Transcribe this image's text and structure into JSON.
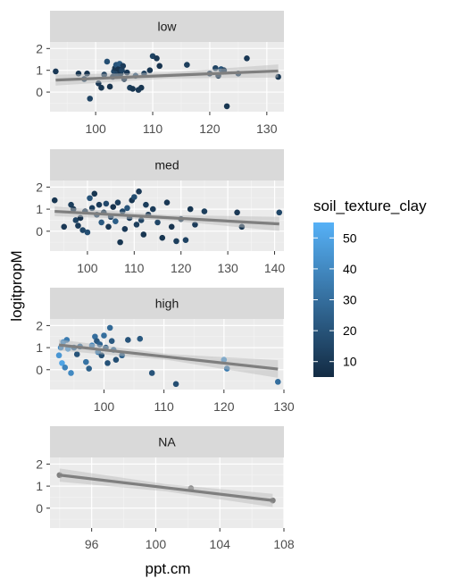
{
  "chart_data": {
    "type": "scatter",
    "xlabel": "ppt.cm",
    "ylabel": "logitpropM",
    "color_scale": {
      "name": "soil_texture_clay",
      "low_color": "#132b43",
      "high_color": "#56b1f7",
      "range": [
        5,
        55
      ],
      "breaks": [
        10,
        20,
        30,
        40,
        50
      ]
    },
    "smooth_color": "#7f7f7f",
    "ribbon_color": "#bebebe",
    "na_point_color": "#808080",
    "panels": [
      {
        "label": "low",
        "xlim": [
          92,
          133
        ],
        "ylim": [
          -0.9,
          2.3
        ],
        "xbreaks": [
          100,
          110,
          120,
          130
        ],
        "ybreaks": [
          0,
          1,
          2
        ],
        "smooth": {
          "x": [
            93,
            132
          ],
          "y": [
            0.55,
            0.97
          ],
          "se": [
            0.25,
            0.3
          ]
        },
        "points": [
          {
            "x": 93,
            "y": 0.95,
            "c": 10
          },
          {
            "x": 97,
            "y": 0.85,
            "c": 9
          },
          {
            "x": 98,
            "y": 0.6,
            "c": 12
          },
          {
            "x": 98.5,
            "y": 0.85,
            "c": 8
          },
          {
            "x": 99,
            "y": -0.3,
            "c": 14
          },
          {
            "x": 100.5,
            "y": 0.4,
            "c": 10
          },
          {
            "x": 101,
            "y": 0.2,
            "c": 9
          },
          {
            "x": 101.5,
            "y": 0.8,
            "c": 12
          },
          {
            "x": 102,
            "y": 1.4,
            "c": 18
          },
          {
            "x": 102.5,
            "y": 0.25,
            "c": 8
          },
          {
            "x": 103,
            "y": 0.7,
            "c": 10
          },
          {
            "x": 103.2,
            "y": 0.95,
            "c": 15
          },
          {
            "x": 103.4,
            "y": 1.1,
            "c": 9
          },
          {
            "x": 103.6,
            "y": 1.25,
            "c": 20
          },
          {
            "x": 103.8,
            "y": 0.8,
            "c": 12
          },
          {
            "x": 104,
            "y": 1.05,
            "c": 8
          },
          {
            "x": 104.2,
            "y": 1.3,
            "c": 22
          },
          {
            "x": 104.4,
            "y": 0.85,
            "c": 9
          },
          {
            "x": 104.6,
            "y": 1.0,
            "c": 14
          },
          {
            "x": 104.8,
            "y": 1.2,
            "c": 11
          },
          {
            "x": 105,
            "y": 0.6,
            "c": 8
          },
          {
            "x": 105.5,
            "y": 0.9,
            "c": 10
          },
          {
            "x": 106,
            "y": 0.2,
            "c": 12
          },
          {
            "x": 106.5,
            "y": 0.15,
            "c": 9
          },
          {
            "x": 107,
            "y": 0.75,
            "c": 18
          },
          {
            "x": 107.5,
            "y": 0.1,
            "c": 10
          },
          {
            "x": 108,
            "y": 0.2,
            "c": 9
          },
          {
            "x": 108.5,
            "y": 0.85,
            "c": 12
          },
          {
            "x": 109.5,
            "y": 1.0,
            "c": 9
          },
          {
            "x": 110,
            "y": 1.65,
            "c": 14
          },
          {
            "x": 110.7,
            "y": 1.55,
            "c": 10
          },
          {
            "x": 111.2,
            "y": 1.2,
            "c": 8
          },
          {
            "x": 116,
            "y": 1.25,
            "c": 12
          },
          {
            "x": 120,
            "y": 0.85,
            "c": 10
          },
          {
            "x": 121,
            "y": 1.1,
            "c": 14
          },
          {
            "x": 121.5,
            "y": 0.75,
            "c": 9
          },
          {
            "x": 122,
            "y": 1.05,
            "c": 20
          },
          {
            "x": 122.5,
            "y": 1.0,
            "c": 11
          },
          {
            "x": 123,
            "y": -0.65,
            "c": 9
          },
          {
            "x": 125,
            "y": 0.85,
            "c": 12
          },
          {
            "x": 126.5,
            "y": 1.55,
            "c": 10
          },
          {
            "x": 132,
            "y": 0.7,
            "c": 9
          }
        ]
      },
      {
        "label": "med",
        "xlim": [
          92,
          142
        ],
        "ylim": [
          -0.9,
          2.3
        ],
        "xbreaks": [
          100,
          110,
          120,
          130,
          140
        ],
        "ybreaks": [
          0,
          1,
          2
        ],
        "smooth": {
          "x": [
            93,
            141
          ],
          "y": [
            0.9,
            0.33
          ],
          "se": [
            0.22,
            0.32
          ]
        },
        "points": [
          {
            "x": 93,
            "y": 1.4,
            "c": 9
          },
          {
            "x": 95,
            "y": 0.2,
            "c": 10
          },
          {
            "x": 96.5,
            "y": 1.2,
            "c": 12
          },
          {
            "x": 97,
            "y": 1.0,
            "c": 9
          },
          {
            "x": 97.5,
            "y": 0.5,
            "c": 14
          },
          {
            "x": 98,
            "y": 0.25,
            "c": 11
          },
          {
            "x": 98.5,
            "y": 0.6,
            "c": 8
          },
          {
            "x": 99,
            "y": 0.05,
            "c": 15
          },
          {
            "x": 99.5,
            "y": 0.9,
            "c": 10
          },
          {
            "x": 100,
            "y": -0.05,
            "c": 18
          },
          {
            "x": 100.5,
            "y": 1.5,
            "c": 20
          },
          {
            "x": 101,
            "y": 1.05,
            "c": 12
          },
          {
            "x": 101.5,
            "y": 1.7,
            "c": 9
          },
          {
            "x": 102,
            "y": 0.75,
            "c": 14
          },
          {
            "x": 102.5,
            "y": 1.2,
            "c": 11
          },
          {
            "x": 103,
            "y": 0.4,
            "c": 22
          },
          {
            "x": 103.5,
            "y": 0.85,
            "c": 9
          },
          {
            "x": 104,
            "y": 1.25,
            "c": 16
          },
          {
            "x": 104.5,
            "y": 0.2,
            "c": 10
          },
          {
            "x": 105,
            "y": 0.65,
            "c": 13
          },
          {
            "x": 105.5,
            "y": 1.1,
            "c": 8
          },
          {
            "x": 106,
            "y": 0.45,
            "c": 24
          },
          {
            "x": 106.5,
            "y": 1.3,
            "c": 12
          },
          {
            "x": 107,
            "y": -0.5,
            "c": 9
          },
          {
            "x": 107.5,
            "y": 0.9,
            "c": 15
          },
          {
            "x": 108,
            "y": 0.1,
            "c": 10
          },
          {
            "x": 108.5,
            "y": 1.05,
            "c": 20
          },
          {
            "x": 109,
            "y": 0.6,
            "c": 11
          },
          {
            "x": 109.5,
            "y": 1.4,
            "c": 9
          },
          {
            "x": 110,
            "y": 1.55,
            "c": 18
          },
          {
            "x": 110.5,
            "y": 0.3,
            "c": 12
          },
          {
            "x": 111,
            "y": 1.8,
            "c": 10
          },
          {
            "x": 111.5,
            "y": 0.5,
            "c": 14
          },
          {
            "x": 112,
            "y": -0.15,
            "c": 9
          },
          {
            "x": 112.5,
            "y": 1.2,
            "c": 12
          },
          {
            "x": 113,
            "y": 0.75,
            "c": 10
          },
          {
            "x": 114,
            "y": 1.0,
            "c": 11
          },
          {
            "x": 115,
            "y": 0.4,
            "c": 15
          },
          {
            "x": 116,
            "y": -0.3,
            "c": 9
          },
          {
            "x": 117,
            "y": 1.3,
            "c": 10
          },
          {
            "x": 118,
            "y": 0.2,
            "c": 8
          },
          {
            "x": 119,
            "y": -0.45,
            "c": 12
          },
          {
            "x": 120,
            "y": 0.55,
            "c": 10
          },
          {
            "x": 121,
            "y": -0.4,
            "c": 14
          },
          {
            "x": 122,
            "y": 1.0,
            "c": 9
          },
          {
            "x": 123,
            "y": 0.3,
            "c": 11
          },
          {
            "x": 125,
            "y": 0.9,
            "c": 12
          },
          {
            "x": 132,
            "y": 0.85,
            "c": 10
          },
          {
            "x": 133,
            "y": 0.2,
            "c": 9
          },
          {
            "x": 141,
            "y": 0.85,
            "c": 15
          }
        ]
      },
      {
        "label": "high",
        "xlim": [
          91,
          130
        ],
        "ylim": [
          -0.9,
          2.3
        ],
        "xbreaks": [
          100,
          110,
          120,
          130
        ],
        "ybreaks": [
          0,
          1,
          2
        ],
        "smooth": {
          "x": [
            92.5,
            129
          ],
          "y": [
            1.12,
            0.03
          ],
          "se": [
            0.25,
            0.4
          ]
        },
        "points": [
          {
            "x": 92.5,
            "y": 0.65,
            "c": 45
          },
          {
            "x": 92.8,
            "y": 1.0,
            "c": 40
          },
          {
            "x": 93,
            "y": 0.3,
            "c": 50
          },
          {
            "x": 93.2,
            "y": 1.25,
            "c": 42
          },
          {
            "x": 93.5,
            "y": 0.1,
            "c": 38
          },
          {
            "x": 93.8,
            "y": 1.35,
            "c": 35
          },
          {
            "x": 94,
            "y": 0.95,
            "c": 48
          },
          {
            "x": 94.5,
            "y": -0.15,
            "c": 40
          },
          {
            "x": 95,
            "y": 1.0,
            "c": 30
          },
          {
            "x": 95.5,
            "y": 0.7,
            "c": 20
          },
          {
            "x": 96,
            "y": 1.05,
            "c": 28
          },
          {
            "x": 97,
            "y": 0.35,
            "c": 32
          },
          {
            "x": 97.5,
            "y": 0.05,
            "c": 25
          },
          {
            "x": 98,
            "y": 1.1,
            "c": 38
          },
          {
            "x": 98.5,
            "y": 1.5,
            "c": 30
          },
          {
            "x": 98.8,
            "y": 1.3,
            "c": 22
          },
          {
            "x": 99,
            "y": 0.8,
            "c": 36
          },
          {
            "x": 99.3,
            "y": 1.15,
            "c": 26
          },
          {
            "x": 99.6,
            "y": 0.65,
            "c": 18
          },
          {
            "x": 100,
            "y": 1.55,
            "c": 30
          },
          {
            "x": 100.3,
            "y": 1.0,
            "c": 24
          },
          {
            "x": 100.6,
            "y": 0.3,
            "c": 20
          },
          {
            "x": 101,
            "y": 1.9,
            "c": 28
          },
          {
            "x": 101.3,
            "y": 1.3,
            "c": 22
          },
          {
            "x": 101.6,
            "y": 0.9,
            "c": 30
          },
          {
            "x": 102,
            "y": 0.45,
            "c": 18
          },
          {
            "x": 103,
            "y": 0.65,
            "c": 25
          },
          {
            "x": 104,
            "y": 1.35,
            "c": 20
          },
          {
            "x": 106,
            "y": 1.4,
            "c": 22
          },
          {
            "x": 108,
            "y": -0.15,
            "c": 20
          },
          {
            "x": 112,
            "y": -0.65,
            "c": 18
          },
          {
            "x": 120,
            "y": 0.45,
            "c": 45
          },
          {
            "x": 120.5,
            "y": 0.05,
            "c": 35
          },
          {
            "x": 129,
            "y": -0.55,
            "c": 30
          }
        ]
      },
      {
        "label": "NA",
        "xlim": [
          93.4,
          108
        ],
        "ylim": [
          -0.9,
          2.3
        ],
        "xbreaks": [
          96,
          100,
          104,
          108
        ],
        "ybreaks": [
          0,
          1,
          2
        ],
        "smooth": {
          "x": [
            94,
            107.3
          ],
          "y": [
            1.5,
            0.35
          ],
          "se": [
            0.3,
            0.3
          ]
        },
        "points": [
          {
            "x": 94,
            "y": 1.5,
            "c": null
          },
          {
            "x": 102.2,
            "y": 0.9,
            "c": null
          },
          {
            "x": 107.3,
            "y": 0.35,
            "c": null
          }
        ]
      }
    ]
  }
}
